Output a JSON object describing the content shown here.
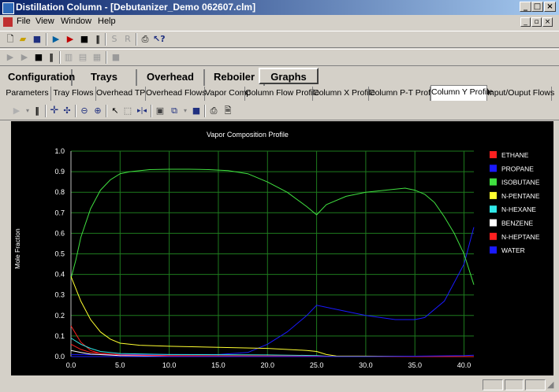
{
  "window": {
    "title": "Distillation Column - [Debutanizer_Demo 062607.clm]"
  },
  "menu": {
    "items": [
      "File",
      "View",
      "Window",
      "Help"
    ]
  },
  "main_tabs": [
    "Configuration",
    "Trays",
    "Overhead",
    "Reboiler",
    "Graphs"
  ],
  "active_main_tab": "Graphs",
  "sub_tabs": [
    "Parameters",
    "Tray Flows",
    "Overhead TP",
    "Overhead Flows",
    "Vapor Comp",
    "Column Flow Profile",
    "Column X Profile",
    "Column P-T Profile",
    "Column Y Profile",
    "Input/Ouput Flows"
  ],
  "active_sub_tab": "Column Y Profile",
  "chart_data": {
    "type": "line",
    "title": "Vapor Composition Profile",
    "ylabel": "Mole Fraction",
    "xlabel": "",
    "xlim": [
      0,
      41
    ],
    "ylim": [
      0,
      1.0
    ],
    "xticks": [
      "0.0",
      "5.0",
      "10.0",
      "15.0",
      "20.0",
      "25.0",
      "30.0",
      "35.0",
      "40.0"
    ],
    "yticks": [
      "0.0",
      "0.1",
      "0.2",
      "0.3",
      "0.4",
      "0.5",
      "0.6",
      "0.7",
      "0.8",
      "0.9",
      "1.0"
    ],
    "grid": true,
    "legend": "right",
    "series": [
      {
        "name": "ETHANE",
        "color": "#ff2020",
        "x": [
          0,
          0.5,
          1,
          2,
          3,
          5,
          10,
          20,
          25,
          26,
          27,
          41
        ],
        "y": [
          0.15,
          0.11,
          0.07,
          0.03,
          0.015,
          0.01,
          0.005,
          0.003,
          0.002,
          0.001,
          0,
          0
        ]
      },
      {
        "name": "PROPANE",
        "color": "#1a1aff",
        "x": [
          0,
          5,
          10,
          15,
          18,
          20,
          22,
          24,
          25,
          27,
          30,
          33,
          35,
          36,
          38,
          40,
          41
        ],
        "y": [
          0.01,
          0.01,
          0.01,
          0.01,
          0.02,
          0.06,
          0.12,
          0.2,
          0.25,
          0.23,
          0.2,
          0.18,
          0.18,
          0.19,
          0.27,
          0.45,
          0.63
        ]
      },
      {
        "name": "ISOBUTANE",
        "color": "#40e040",
        "x": [
          0,
          0.5,
          1,
          2,
          3,
          4,
          5,
          6,
          8,
          10,
          12,
          14,
          16,
          18,
          20,
          22,
          24,
          25,
          26,
          28,
          30,
          32,
          34,
          35,
          36,
          37,
          38,
          39,
          40,
          41
        ],
        "y": [
          0.38,
          0.47,
          0.58,
          0.72,
          0.81,
          0.86,
          0.89,
          0.9,
          0.91,
          0.912,
          0.912,
          0.91,
          0.905,
          0.89,
          0.85,
          0.8,
          0.73,
          0.69,
          0.74,
          0.78,
          0.8,
          0.81,
          0.82,
          0.81,
          0.79,
          0.75,
          0.68,
          0.6,
          0.5,
          0.35
        ]
      },
      {
        "name": "N-PENTANE",
        "color": "#ffff30",
        "x": [
          0,
          1,
          2,
          3,
          4,
          5,
          7,
          10,
          15,
          20,
          24,
          25,
          26,
          27,
          41
        ],
        "y": [
          0.39,
          0.27,
          0.18,
          0.12,
          0.085,
          0.065,
          0.055,
          0.05,
          0.045,
          0.04,
          0.03,
          0.025,
          0.01,
          0.003,
          0
        ]
      },
      {
        "name": "N-HEXANE",
        "color": "#30e8e8",
        "x": [
          0,
          1,
          2,
          3,
          5,
          10,
          20,
          25,
          26,
          27,
          41
        ],
        "y": [
          0.09,
          0.06,
          0.04,
          0.025,
          0.015,
          0.01,
          0.008,
          0.005,
          0.002,
          0,
          0
        ]
      },
      {
        "name": "BENZENE",
        "color": "#ffffff",
        "x": [
          0,
          1,
          2,
          5,
          10,
          20,
          25,
          27,
          41
        ],
        "y": [
          0.03,
          0.02,
          0.012,
          0.005,
          0.003,
          0.002,
          0.001,
          0,
          0
        ]
      },
      {
        "name": "N-HEPTANE",
        "color": "#ff2020",
        "x": [
          0,
          1,
          2,
          5,
          10,
          20,
          25,
          27,
          41
        ],
        "y": [
          0.06,
          0.035,
          0.02,
          0.008,
          0.004,
          0.003,
          0.002,
          0,
          0
        ]
      },
      {
        "name": "WATER",
        "color": "#1a1aff",
        "x": [
          0,
          5,
          10,
          20,
          25,
          30,
          35,
          40,
          41
        ],
        "y": [
          0,
          0,
          0,
          0,
          0,
          0,
          0.002,
          0.005,
          0.007
        ]
      }
    ]
  }
}
